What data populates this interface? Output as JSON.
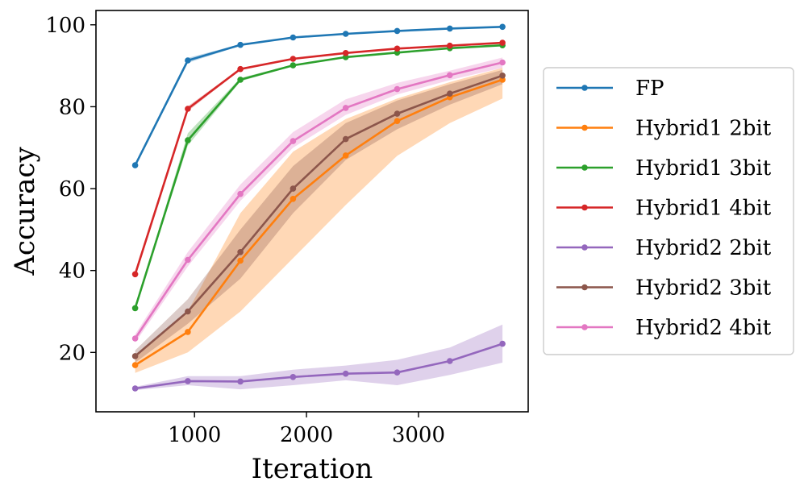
{
  "chart_data": {
    "type": "line",
    "title": "",
    "xlabel": "Iteration",
    "ylabel": "Accuracy",
    "xlim": [
      120,
      3980
    ],
    "ylim": [
      5.5,
      103.5
    ],
    "xticks": [
      1000,
      2000,
      3000
    ],
    "yticks": [
      20,
      40,
      60,
      80,
      100
    ],
    "grid": false,
    "legend_position": "right",
    "x": [
      470,
      940,
      1410,
      1880,
      2350,
      2810,
      3280,
      3750
    ],
    "series": [
      {
        "name": "FP",
        "color": "#1f77b4",
        "values": [
          65.7,
          91.3,
          95.1,
          96.9,
          97.8,
          98.5,
          99.1,
          99.5
        ],
        "lower": [
          65.7,
          90.7,
          94.9,
          96.8,
          97.7,
          98.4,
          99.0,
          99.4
        ],
        "upper": [
          65.7,
          91.9,
          95.3,
          97.0,
          97.9,
          98.6,
          99.2,
          99.6
        ]
      },
      {
        "name": "Hybrid1 2bit",
        "color": "#ff7f0e",
        "values": [
          16.9,
          25.0,
          42.4,
          57.5,
          68.1,
          76.5,
          82.3,
          86.6
        ],
        "lower": [
          15.0,
          20.0,
          30.0,
          43.0,
          56.0,
          68.0,
          76.0,
          82.0
        ],
        "upper": [
          18.8,
          30.0,
          54.0,
          69.0,
          77.0,
          82.0,
          86.0,
          89.5
        ]
      },
      {
        "name": "Hybrid1 3bit",
        "color": "#2ca02c",
        "values": [
          30.8,
          71.8,
          86.6,
          90.1,
          92.1,
          93.2,
          94.3,
          95.0
        ],
        "lower": [
          30.8,
          70.5,
          86.2,
          89.9,
          91.9,
          93.0,
          94.1,
          94.8
        ],
        "upper": [
          30.8,
          73.5,
          87.0,
          90.3,
          92.3,
          93.4,
          94.5,
          95.2
        ]
      },
      {
        "name": "Hybrid1 4bit",
        "color": "#d62728",
        "values": [
          39.1,
          79.5,
          89.2,
          91.7,
          93.1,
          94.2,
          94.9,
          95.6
        ],
        "lower": [
          39.1,
          78.9,
          89.0,
          91.5,
          92.9,
          94.0,
          94.7,
          95.4
        ],
        "upper": [
          39.1,
          80.1,
          89.4,
          91.9,
          93.3,
          94.4,
          95.1,
          95.8
        ]
      },
      {
        "name": "Hybrid2 2bit",
        "color": "#9467bd",
        "values": [
          11.2,
          13.0,
          12.9,
          14.0,
          14.8,
          15.1,
          17.9,
          22.1
        ],
        "lower": [
          10.8,
          12.0,
          11.0,
          12.0,
          13.2,
          12.0,
          14.5,
          17.5
        ],
        "upper": [
          11.6,
          14.2,
          14.2,
          15.8,
          16.8,
          18.2,
          21.2,
          26.8
        ]
      },
      {
        "name": "Hybrid2 3bit",
        "color": "#8c564b",
        "values": [
          19.1,
          30.0,
          44.5,
          60.0,
          72.1,
          78.3,
          83.2,
          87.6
        ],
        "lower": [
          17.5,
          27.0,
          38.0,
          54.0,
          67.0,
          74.5,
          80.5,
          85.5
        ],
        "upper": [
          20.5,
          33.0,
          50.0,
          65.5,
          76.0,
          81.5,
          85.5,
          89.0
        ]
      },
      {
        "name": "Hybrid2 4bit",
        "color": "#e377c2",
        "values": [
          23.4,
          42.6,
          58.7,
          71.6,
          79.7,
          84.3,
          87.7,
          90.8
        ],
        "lower": [
          22.4,
          41.0,
          57.0,
          70.0,
          78.0,
          83.0,
          86.5,
          89.5
        ],
        "upper": [
          24.4,
          44.5,
          61.0,
          73.8,
          81.8,
          85.8,
          88.8,
          92.0
        ]
      }
    ]
  }
}
